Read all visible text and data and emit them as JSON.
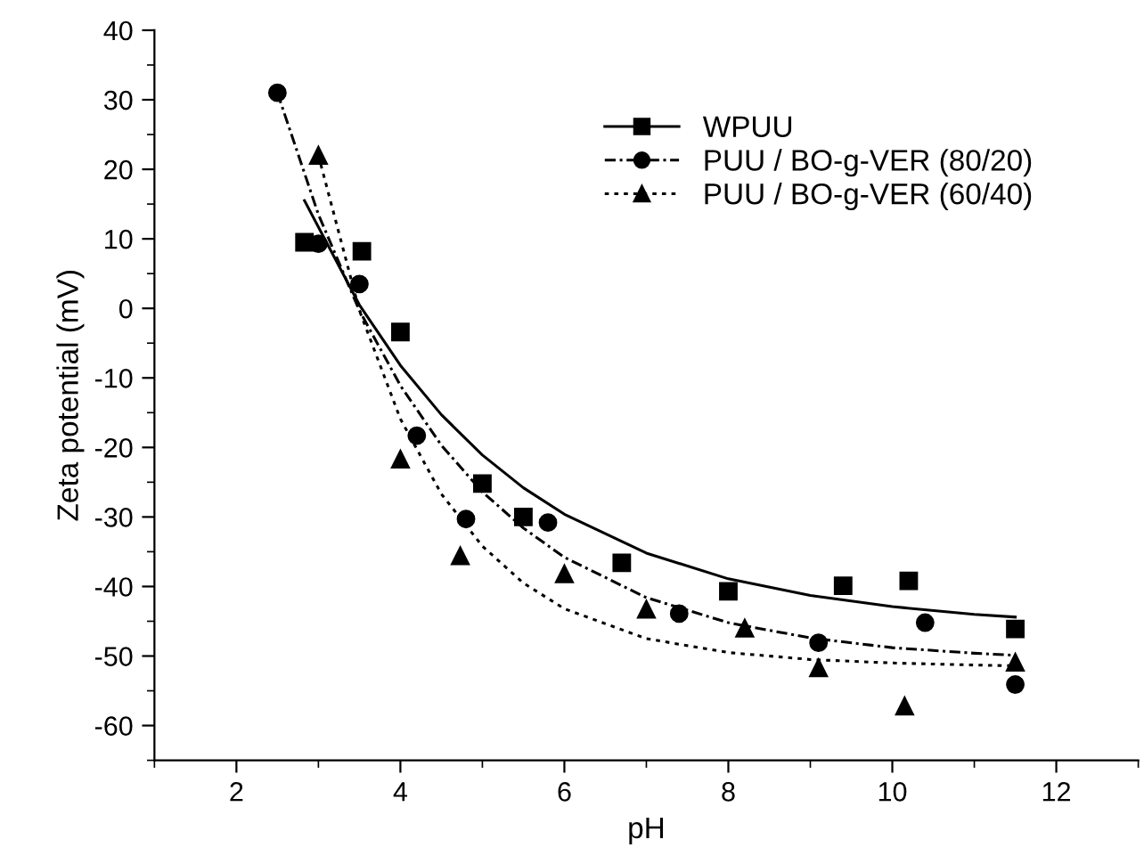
{
  "chart_data": {
    "type": "scatter",
    "xlabel": "pH",
    "ylabel": "Zeta potential (mV)",
    "xlim": [
      1,
      13
    ],
    "ylim": [
      -65,
      40
    ],
    "xticks": [
      2,
      4,
      6,
      8,
      10,
      12
    ],
    "yticks": [
      -60,
      -50,
      -40,
      -30,
      -20,
      -10,
      0,
      10,
      20,
      30,
      40
    ],
    "grid": false,
    "legend": "top right",
    "series": [
      {
        "name": "WPUU",
        "color": "#000000",
        "marker": "square",
        "line_style": "solid",
        "x": [
          2.83,
          3.53,
          4.0,
          5.0,
          5.5,
          6.7,
          8.0,
          9.4,
          10.2,
          11.5
        ],
        "values": [
          9.5,
          8.2,
          -3.4,
          -25.2,
          -30,
          -36.6,
          -40.7,
          -39.9,
          -39.2,
          -46.1
        ]
      },
      {
        "name": "PUU / BO-g-VER (80/20)",
        "color": "#000000",
        "marker": "circle",
        "line_style": "dashdot",
        "x": [
          2.5,
          3.0,
          3.5,
          4.2,
          4.8,
          5.8,
          7.4,
          9.1,
          10.4,
          11.5
        ],
        "values": [
          31,
          9.3,
          3.5,
          -18.3,
          -30.3,
          -30.8,
          -43.9,
          -48.1,
          -45.2,
          -54.1
        ]
      },
      {
        "name": "PUU / BO-g-VER (60/40)",
        "color": "#000000",
        "marker": "triangle",
        "line_style": "dotted",
        "x": [
          3.0,
          4.0,
          4.73,
          6.0,
          7.0,
          8.2,
          9.1,
          10.15,
          11.5
        ],
        "values": [
          22,
          -21.7,
          -35.6,
          -38.2,
          -43.3,
          -46,
          -51.7,
          -57.2,
          -50.9
        ]
      },
      {
        "type": "line",
        "color": "#000000",
        "marker": "none",
        "line_style": "solid",
        "x": [
          2.83,
          3.5,
          4,
          4.5,
          5,
          5.5,
          6,
          7,
          8,
          9,
          10,
          11,
          11.5
        ],
        "values": [
          15.5,
          0.5,
          -8.2,
          -15.3,
          -21.1,
          -25.8,
          -29.6,
          -35.2,
          -38.9,
          -41.3,
          -42.9,
          -44.0,
          -44.4
        ]
      },
      {
        "type": "line",
        "color": "#000000",
        "marker": "none",
        "line_style": "dashdot",
        "x": [
          2.5,
          3,
          3.5,
          4,
          4.5,
          5,
          5.5,
          6,
          7,
          8,
          9,
          10,
          11,
          11.5
        ],
        "values": [
          31,
          13.5,
          -0.3,
          -11.1,
          -19.7,
          -26.4,
          -31.6,
          -35.8,
          -41.6,
          -45.2,
          -47.4,
          -48.8,
          -49.6,
          -49.9
        ]
      },
      {
        "type": "line",
        "color": "#000000",
        "marker": "none",
        "line_style": "dotted",
        "x": [
          3,
          3.5,
          4,
          4.5,
          5,
          5.5,
          6,
          7,
          8,
          9,
          10,
          11,
          11.5
        ],
        "values": [
          22,
          -0.3,
          -15.9,
          -26.7,
          -34.2,
          -39.5,
          -43.2,
          -47.5,
          -49.5,
          -50.5,
          -51.0,
          -51.3,
          -51.4
        ]
      }
    ]
  }
}
